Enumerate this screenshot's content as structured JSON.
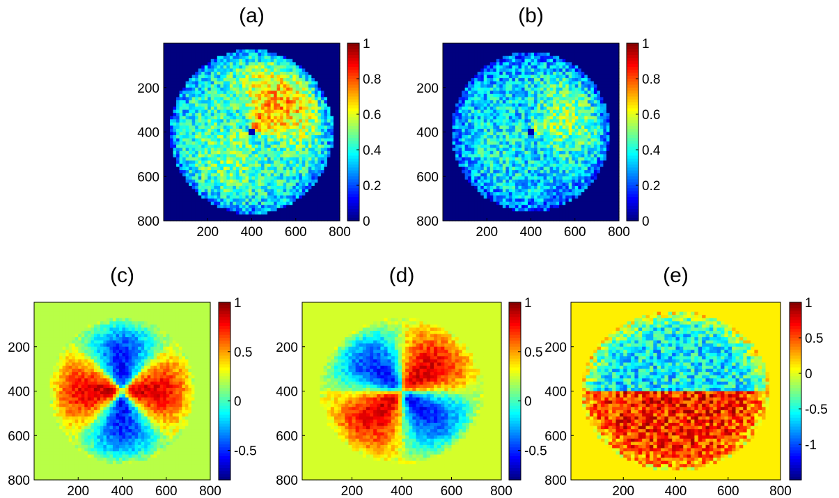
{
  "figure": {
    "colormap": "jet",
    "colormap_stops": [
      "#00007f",
      "#0000ff",
      "#007fff",
      "#00ffff",
      "#7fff7f",
      "#ffff00",
      "#ff7f00",
      "#ff0000",
      "#7f0000"
    ]
  },
  "chart_data": [
    {
      "type": "heatmap",
      "title": "(a)",
      "x_ticks": [
        "200",
        "400",
        "600",
        "800"
      ],
      "y_ticks": [
        "200",
        "400",
        "600",
        "800"
      ],
      "xlim": [
        0,
        800
      ],
      "ylim": [
        0,
        800
      ],
      "colorbar": {
        "range": [
          0,
          1
        ],
        "ticks": [
          "0",
          "0.2",
          "0.4",
          "0.6",
          "0.8",
          "1"
        ],
        "tick_values": [
          0,
          0.2,
          0.4,
          0.6,
          0.8,
          1
        ]
      },
      "background_value": 0,
      "pattern": "disk",
      "disk": {
        "cx": 400,
        "cy": 400,
        "r": 370,
        "base": 0.42,
        "peak_angle_deg": 45,
        "peak_amp": 0.3,
        "center_hole_r": 22
      }
    },
    {
      "type": "heatmap",
      "title": "(b)",
      "x_ticks": [
        "200",
        "400",
        "600",
        "800"
      ],
      "y_ticks": [
        "200",
        "400",
        "600",
        "800"
      ],
      "xlim": [
        0,
        800
      ],
      "ylim": [
        0,
        800
      ],
      "colorbar": {
        "range": [
          0,
          1
        ],
        "ticks": [
          "0",
          "0.2",
          "0.4",
          "0.6",
          "0.8",
          "1"
        ],
        "tick_values": [
          0,
          0.2,
          0.4,
          0.6,
          0.8,
          1
        ]
      },
      "background_value": 0,
      "pattern": "disk",
      "disk": {
        "cx": 400,
        "cy": 400,
        "r": 360,
        "base": 0.34,
        "peak_angle_deg": 20,
        "peak_amp": 0.18,
        "center_hole_r": 18
      }
    },
    {
      "type": "heatmap",
      "title": "(c)",
      "x_ticks": [
        "200",
        "400",
        "600",
        "800"
      ],
      "y_ticks": [
        "200",
        "400",
        "600",
        "800"
      ],
      "xlim": [
        0,
        800
      ],
      "ylim": [
        0,
        800
      ],
      "colorbar": {
        "range": [
          -0.8,
          1
        ],
        "ticks": [
          "-0.5",
          "0",
          "0.5",
          "1"
        ],
        "tick_values": [
          -0.5,
          0,
          0.5,
          1
        ]
      },
      "background_value": 0.2,
      "pattern": "quadrupole",
      "lobes": {
        "cx": 400,
        "cy": 400,
        "r": 330,
        "rotation_deg": 0,
        "pos_amp": 0.85,
        "neg_amp": -0.55
      }
    },
    {
      "type": "heatmap",
      "title": "(d)",
      "x_ticks": [
        "200",
        "400",
        "600",
        "800"
      ],
      "y_ticks": [
        "200",
        "400",
        "600",
        "800"
      ],
      "xlim": [
        0,
        800
      ],
      "ylim": [
        0,
        800
      ],
      "colorbar": {
        "range": [
          -0.8,
          1
        ],
        "ticks": [
          "-0.5",
          "0",
          "0.5",
          "1"
        ],
        "tick_values": [
          -0.5,
          0,
          0.5,
          1
        ]
      },
      "background_value": 0.25,
      "pattern": "quadrupole",
      "lobes": {
        "cx": 400,
        "cy": 400,
        "r": 330,
        "rotation_deg": 45,
        "pos_amp": 0.85,
        "neg_amp": -0.55
      }
    },
    {
      "type": "heatmap",
      "title": "(e)",
      "x_ticks": [
        "200",
        "400",
        "600",
        "800"
      ],
      "y_ticks": [
        "200",
        "400",
        "600",
        "800"
      ],
      "xlim": [
        0,
        800
      ],
      "ylim": [
        0,
        800
      ],
      "colorbar": {
        "range": [
          -1.5,
          1
        ],
        "ticks": [
          "-1",
          "-0.5",
          "0",
          "0.5",
          "1"
        ],
        "tick_values": [
          -1,
          -0.5,
          0,
          0.5,
          1
        ]
      },
      "background_value": 0.1,
      "pattern": "split-disk",
      "split": {
        "cx": 400,
        "cy": 400,
        "r": 360,
        "upper_value": -0.6,
        "lower_value": 0.6
      }
    }
  ]
}
